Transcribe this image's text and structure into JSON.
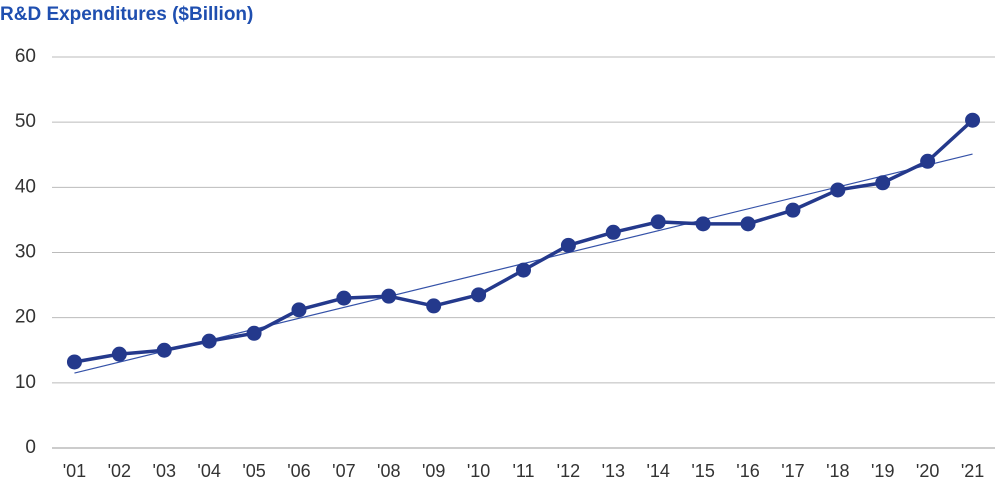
{
  "chart_data": {
    "type": "line",
    "title": "R&D Expenditures ($Billion)",
    "categories": [
      "'01",
      "'02",
      "'03",
      "'04",
      "'05",
      "'06",
      "'07",
      "'08",
      "'09",
      "'10",
      "'11",
      "'12",
      "'13",
      "'14",
      "'15",
      "'16",
      "'17",
      "'18",
      "'19",
      "'20",
      "'21"
    ],
    "series": [
      {
        "color": "#24398c",
        "values": [
          13.2,
          14.4,
          15.0,
          16.4,
          17.6,
          21.2,
          23.0,
          23.3,
          21.8,
          23.5,
          27.3,
          31.1,
          33.1,
          34.7,
          34.4,
          34.4,
          36.5,
          39.6,
          40.7,
          44.0,
          50.3
        ]
      }
    ],
    "trendline": {
      "color": "#3552a8",
      "start": 11.5,
      "end": 45.1
    },
    "ylim": [
      0,
      60
    ],
    "yticks": [
      0,
      10,
      20,
      30,
      40,
      50,
      60
    ],
    "grid": true
  }
}
